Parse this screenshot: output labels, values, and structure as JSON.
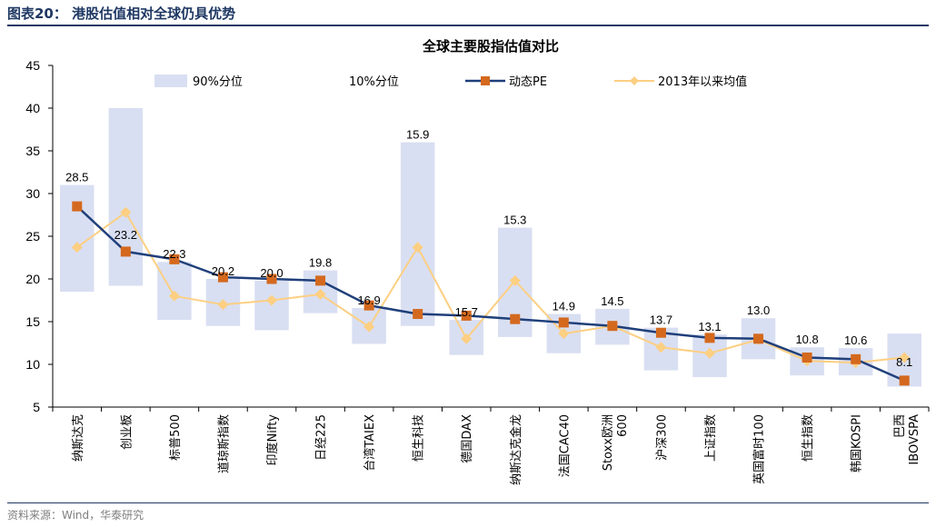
{
  "figure_title": "图表20：  港股估值相对全球仍具优势",
  "source": "资料来源：Wind，华泰研究",
  "chart_data": {
    "type": "line",
    "title": "全球主要股指估值对比",
    "xlabel": "",
    "ylabel": "",
    "ylim": [
      5,
      45
    ],
    "yticks": [
      5,
      10,
      15,
      20,
      25,
      30,
      35,
      40,
      45
    ],
    "grid": false,
    "legend_position": "top",
    "categories": [
      "纳斯达克",
      "创业板",
      "标普500",
      "道琼斯指数",
      "印度Nifty",
      "日经225",
      "台湾TAIEX",
      "恒生科技",
      "德国DAX",
      "纳斯达克金龙",
      "法国CAC40",
      "Stoxx欧洲600",
      "沪深300",
      "上证指数",
      "英国富时100",
      "恒生指数",
      "韩国KOSPI",
      "巴西IBOVSPA"
    ],
    "series": [
      {
        "name": "90%分位",
        "kind": "band_top",
        "color": "#d9dff2",
        "values": [
          31.0,
          40.0,
          22.0,
          20.0,
          19.8,
          21.0,
          16.6,
          36.0,
          15.2,
          26.0,
          15.9,
          16.5,
          14.3,
          13.5,
          15.4,
          12.0,
          11.9,
          13.6
        ]
      },
      {
        "name": "10%分位",
        "kind": "band_bottom",
        "color": "#ffffff",
        "values": [
          18.5,
          19.2,
          15.2,
          14.5,
          14.0,
          16.0,
          12.4,
          14.5,
          11.1,
          13.2,
          11.3,
          12.3,
          9.3,
          8.5,
          10.6,
          8.7,
          8.7,
          7.4
        ]
      },
      {
        "name": "动态PE",
        "kind": "line",
        "color": "#1f3f7a",
        "marker_color": "#d4691e",
        "values": [
          28.5,
          23.2,
          22.3,
          20.2,
          20.0,
          19.8,
          16.9,
          15.9,
          15.7,
          15.3,
          14.9,
          14.5,
          13.7,
          13.1,
          13.0,
          10.8,
          10.6,
          8.1
        ],
        "labels": [
          "28.5",
          "23.2",
          "22.3",
          "20.2",
          "20.0",
          "19.8",
          "16.9",
          "15.9",
          "15.7",
          "15.3",
          "14.9",
          "14.5",
          "13.7",
          "13.1",
          "13.0",
          "10.8",
          "10.6",
          "8.1"
        ]
      },
      {
        "name": "2013年以来均值",
        "kind": "line",
        "color": "#fccf82",
        "marker_color": "#fccf82",
        "values": [
          23.7,
          27.8,
          18.0,
          17.0,
          17.5,
          18.2,
          14.4,
          23.7,
          13.0,
          19.8,
          13.6,
          14.5,
          12.0,
          11.3,
          12.9,
          10.4,
          10.2,
          10.8
        ]
      }
    ]
  }
}
